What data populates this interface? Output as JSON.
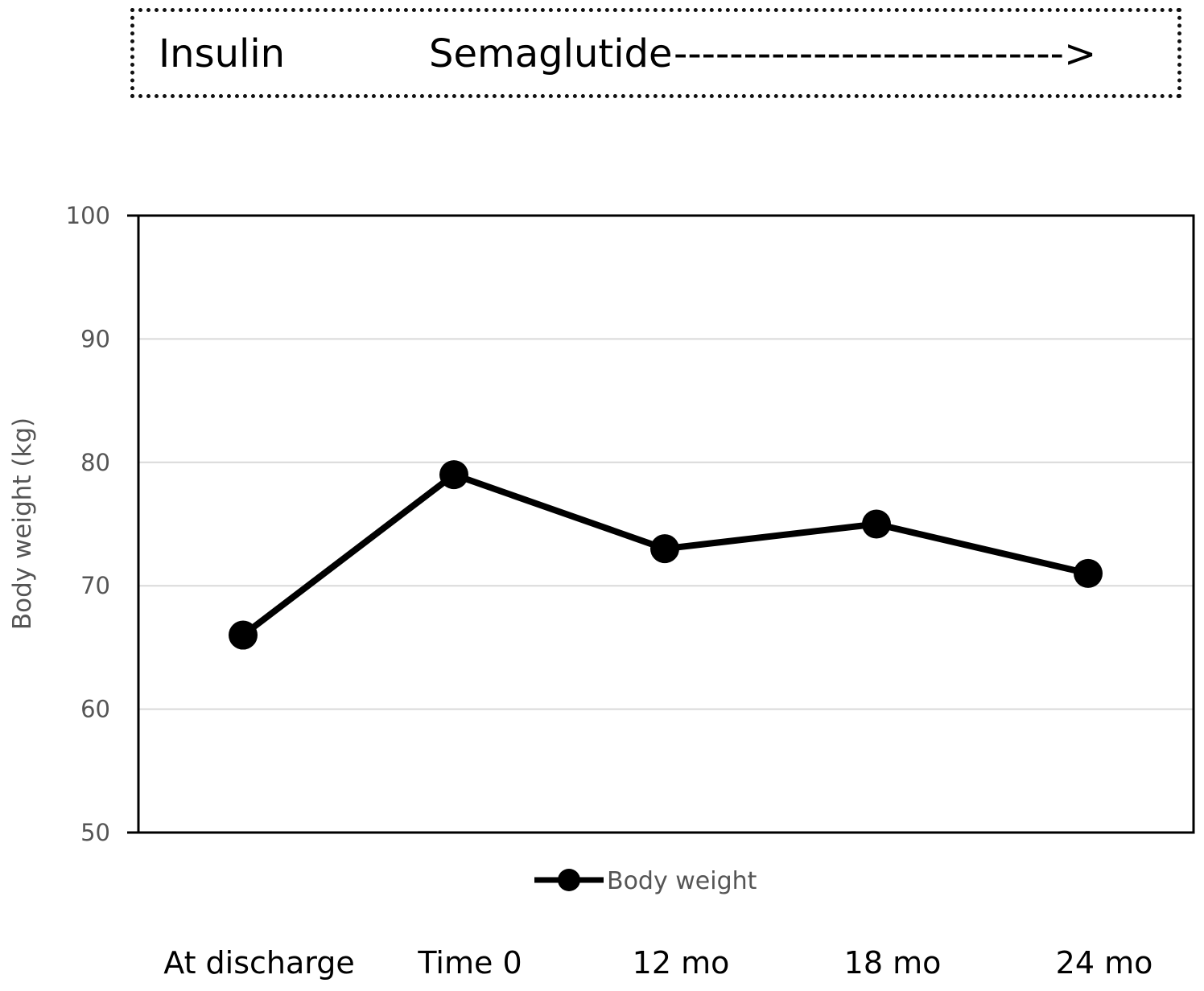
{
  "treatment": {
    "insulin_label": "Insulin",
    "semaglutide_label": "Semaglutide",
    "arrow": "---------------------------->"
  },
  "chart_data": {
    "type": "line",
    "title": "",
    "xlabel": "",
    "ylabel": "Body weight (kg)",
    "ylim": [
      50,
      100
    ],
    "yticks": [
      50,
      60,
      70,
      80,
      90,
      100
    ],
    "grid": true,
    "legend_position": "bottom-center",
    "categories": [
      "At discharge",
      "Time 0",
      "12 mo",
      "18 mo",
      "24 mo"
    ],
    "series": [
      {
        "name": "Body weight",
        "values": [
          66,
          79,
          73,
          75,
          71
        ]
      }
    ],
    "colors": {
      "line": "#000000",
      "grid": "#d9d9d9",
      "axis": "#000000"
    }
  }
}
